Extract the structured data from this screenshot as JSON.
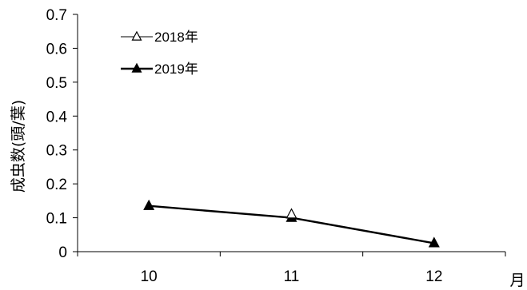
{
  "chart_data": {
    "type": "line",
    "title": "",
    "xlabel": "月",
    "ylabel": "成虫数(頭/葉)",
    "categories": [
      "10",
      "11",
      "12"
    ],
    "ylim": [
      0,
      0.7
    ],
    "yticks": [
      "0",
      "0.1",
      "0.2",
      "0.3",
      "0.4",
      "0.5",
      "0.6",
      "0.7"
    ],
    "grid": false,
    "legend_position": "top-left",
    "series": [
      {
        "name": "2018年",
        "marker": "open-triangle",
        "color": "#000000",
        "values": [
          null,
          0.11,
          null
        ]
      },
      {
        "name": "2019年",
        "marker": "filled-triangle",
        "color": "#000000",
        "values": [
          0.135,
          0.1,
          0.025
        ]
      }
    ]
  }
}
